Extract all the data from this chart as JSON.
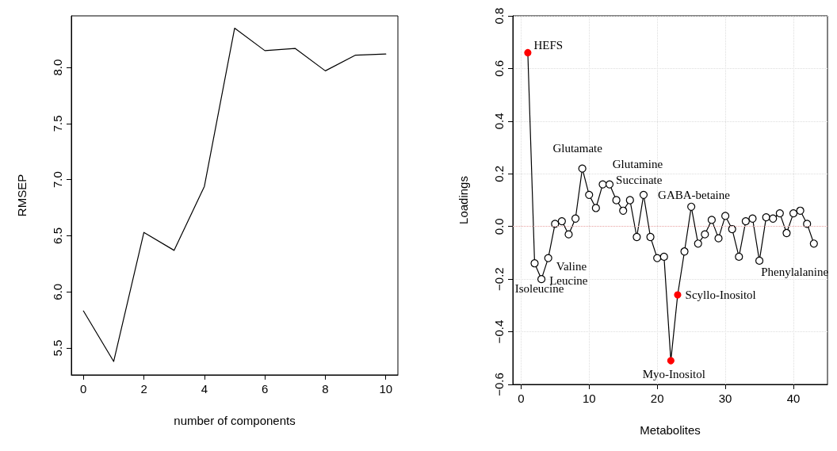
{
  "chart_data": [
    {
      "type": "line",
      "xlabel": "number of components",
      "ylabel": "RMSEP",
      "x": [
        0,
        1,
        2,
        3,
        4,
        5,
        6,
        7,
        8,
        9,
        10
      ],
      "series": [
        {
          "color": "#000000",
          "values": [
            5.83,
            5.38,
            6.53,
            6.37,
            6.94,
            8.35,
            8.15,
            8.17,
            7.97,
            8.11,
            8.12
          ]
        }
      ],
      "xlim": [
        -0.4,
        10.4
      ],
      "xticks": [
        0,
        2,
        4,
        6,
        8,
        10
      ],
      "ylim": [
        5.26,
        8.46
      ],
      "yticks": [
        5.5,
        {
          "value": 6,
          "label": "6.0"
        },
        6.5,
        {
          "value": 7,
          "label": "7.0"
        },
        7.5,
        {
          "value": 8,
          "label": "8.0"
        }
      ],
      "grid": false,
      "marker": "none",
      "line_style": "solid"
    },
    {
      "type": "line",
      "xlabel": "Metabolites",
      "ylabel": "Loadings",
      "x": [
        1,
        2,
        3,
        4,
        5,
        6,
        7,
        8,
        9,
        10,
        11,
        12,
        13,
        14,
        15,
        16,
        17,
        18,
        19,
        20,
        21,
        22,
        23,
        24,
        25,
        26,
        27,
        28,
        29,
        30,
        31,
        32,
        33,
        34,
        35,
        36,
        37,
        38,
        39,
        40,
        41,
        42,
        43
      ],
      "series": [
        {
          "color": "#000000",
          "values": [
            0.66,
            -0.14,
            -0.2,
            -0.12,
            0.01,
            0.02,
            -0.03,
            0.03,
            0.22,
            0.12,
            0.07,
            0.16,
            0.16,
            0.1,
            0.06,
            0.1,
            -0.04,
            0.12,
            -0.04,
            -0.12,
            -0.115,
            -0.51,
            -0.26,
            -0.095,
            0.075,
            -0.065,
            -0.03,
            0.025,
            -0.045,
            0.04,
            -0.01,
            -0.115,
            0.02,
            0.03,
            -0.13,
            0.035,
            0.03,
            0.05,
            -0.025,
            0.05,
            0.06,
            0.01,
            -0.065
          ],
          "colors": [
            "#ff0000",
            "#000000",
            "#000000",
            "#000000",
            "#000000",
            "#000000",
            "#000000",
            "#000000",
            "#000000",
            "#000000",
            "#000000",
            "#000000",
            "#000000",
            "#000000",
            "#000000",
            "#000000",
            "#000000",
            "#000000",
            "#000000",
            "#000000",
            "#000000",
            "#ff0000",
            "#ff0000",
            "#000000",
            "#000000",
            "#000000",
            "#000000",
            "#000000",
            "#000000",
            "#000000",
            "#000000",
            "#000000",
            "#000000",
            "#000000",
            "#000000",
            "#000000",
            "#000000",
            "#000000",
            "#000000",
            "#000000",
            "#000000",
            "#000000",
            "#000000"
          ]
        }
      ],
      "annotations": [
        {
          "text": "HEFS",
          "x": 1,
          "y": 0.66
        },
        {
          "text": "Isoleucine",
          "x": 2,
          "y": -0.14
        },
        {
          "text": "Leucine",
          "x": 3,
          "y": -0.2
        },
        {
          "text": "Valine",
          "x": 4,
          "y": -0.12
        },
        {
          "text": "Glutamate",
          "x": 9,
          "y": 0.22
        },
        {
          "text": "Glutamine",
          "x": 12,
          "y": 0.16
        },
        {
          "text": "Succinate",
          "x": 13,
          "y": 0.16
        },
        {
          "text": "GABA-betaine",
          "x": 18,
          "y": 0.12
        },
        {
          "text": "Myo-Inositol",
          "x": 22,
          "y": -0.51
        },
        {
          "text": "Scyllo-Inositol",
          "x": 23,
          "y": -0.26
        },
        {
          "text": "Phenylalanine",
          "x": 35,
          "y": -0.13
        }
      ],
      "ref_lines": [
        {
          "axis": "y",
          "value": 0,
          "color": "#e8a0a0",
          "line_style": "dotted"
        }
      ],
      "xlim": [
        -1.2,
        45
      ],
      "xticks": [
        0,
        10,
        20,
        30,
        40
      ],
      "ylim": [
        -0.6,
        0.8
      ],
      "yticks": [
        {
          "value": -0.6,
          "label": "−0.6"
        },
        {
          "value": -0.4,
          "label": "−0.4"
        },
        {
          "value": -0.2,
          "label": "−0.2"
        },
        {
          "value": 0,
          "label": "0.0"
        },
        0.2,
        0.4,
        0.6,
        0.8
      ],
      "grid": true,
      "marker": "circle",
      "line_style": "solid"
    }
  ]
}
